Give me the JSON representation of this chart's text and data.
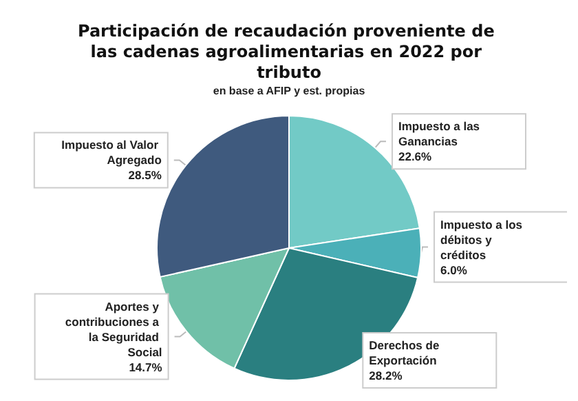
{
  "chart_data": {
    "type": "pie",
    "title": "Participación de recaudación proveniente de las cadenas agroalimentarias en 2022 por tributo",
    "subtitle": "en base a AFIP y est. propias",
    "categories": [
      "Impuesto a las Ganancias",
      "Impuesto a los débitos y créditos",
      "Derechos de Exportación",
      "Aportes y contribuciones a la Seguridad Social",
      "Impuesto al Valor Agregado"
    ],
    "values": [
      22.6,
      6.0,
      28.2,
      14.7,
      28.5
    ],
    "colors": [
      "#72cac6",
      "#4bb0b8",
      "#2a7f80",
      "#70c0a8",
      "#3f5a7e"
    ],
    "value_labels": [
      "22.6%",
      "6.0%",
      "28.2%",
      "14.7%",
      "28.5%"
    ]
  }
}
